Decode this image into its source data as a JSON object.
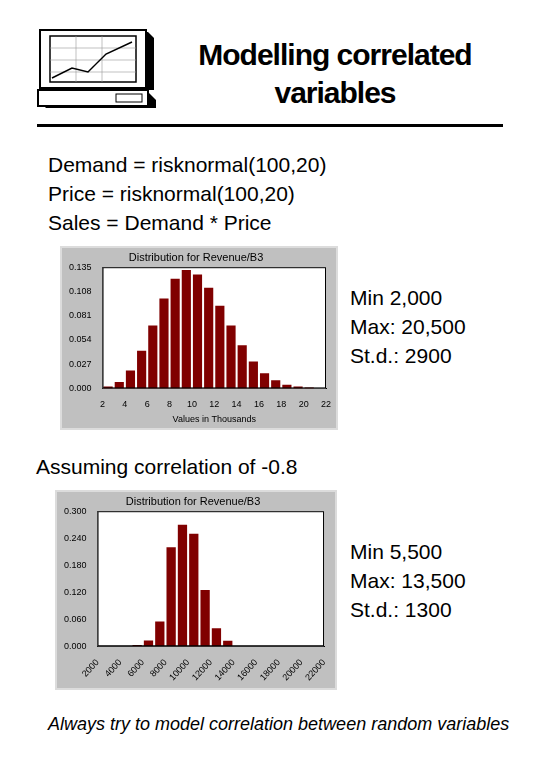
{
  "title": "Modelling correlated variables",
  "model": [
    "Demand = risknormal(100,20)",
    "Price = risknormal(100,20)",
    "Sales = Demand * Price"
  ],
  "correlation_note": "Assuming correlation of -0.8",
  "footer": "Always try to model correlation between random variables",
  "chart_data": [
    {
      "type": "histogram",
      "title": "Distribution for Revenue/B3",
      "x_label": "Values in Thousands",
      "bins": [
        2,
        3,
        4,
        5,
        6,
        7,
        8,
        9,
        10,
        11,
        12,
        13,
        14,
        15,
        16,
        17,
        18,
        19,
        20,
        21
      ],
      "values": [
        0.002,
        0.007,
        0.02,
        0.042,
        0.07,
        0.1,
        0.122,
        0.132,
        0.127,
        0.112,
        0.092,
        0.07,
        0.048,
        0.03,
        0.017,
        0.009,
        0.004,
        0.002,
        0.001
      ],
      "color": "#800000",
      "xlim": [
        2,
        22
      ],
      "xticks": [
        2,
        4,
        6,
        8,
        10,
        12,
        14,
        16,
        18,
        20,
        22
      ],
      "ylim": [
        0,
        0.135
      ],
      "yticks": [
        {
          "value": 0,
          "label": "0.000"
        },
        {
          "value": 0.027,
          "label": "0.027"
        },
        {
          "value": 0.054,
          "label": "0.054"
        },
        {
          "value": 0.081,
          "label": "0.081"
        },
        {
          "value": 0.108,
          "label": "0.108"
        },
        {
          "value": 0.135,
          "label": "0.135"
        }
      ],
      "grid": false,
      "annotations": [
        "Min 2,000",
        "Max: 20,500",
        "St.d.: 2900"
      ]
    },
    {
      "type": "histogram",
      "title": "Distribution for Revenue/B3",
      "bins": [
        5000,
        6000,
        7000,
        8000,
        9000,
        10000,
        11000,
        12000,
        13000,
        14000
      ],
      "values": [
        0.003,
        0.013,
        0.055,
        0.22,
        0.27,
        0.25,
        0.125,
        0.04,
        0.012
      ],
      "color": "#800000",
      "xlim": [
        2000,
        22000
      ],
      "xticks": [
        2000,
        4000,
        6000,
        8000,
        10000,
        12000,
        14000,
        16000,
        18000,
        20000,
        22000
      ],
      "ylim": [
        0,
        0.3
      ],
      "yticks": [
        {
          "value": 0,
          "label": "0.000"
        },
        {
          "value": 0.06,
          "label": "0.060"
        },
        {
          "value": 0.12,
          "label": "0.120"
        },
        {
          "value": 0.18,
          "label": "0.180"
        },
        {
          "value": 0.24,
          "label": "0.240"
        },
        {
          "value": 0.3,
          "label": "0.300"
        }
      ],
      "grid": false,
      "annotations": [
        "Min 5,500",
        "Max: 13,500",
        "St.d.: 1300"
      ]
    }
  ]
}
